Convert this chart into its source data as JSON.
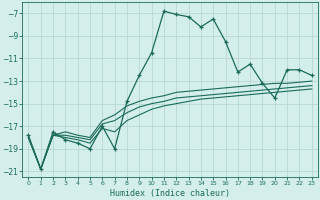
{
  "xlabel": "Humidex (Indice chaleur)",
  "bg_color": "#d4eeeb",
  "grid_color": "#b8d8d4",
  "line_color": "#1a6b5a",
  "xlim": [
    -0.5,
    23.5
  ],
  "ylim": [
    -21.5,
    -6.0
  ],
  "xticks": [
    0,
    1,
    2,
    3,
    4,
    5,
    6,
    7,
    8,
    9,
    10,
    11,
    12,
    13,
    14,
    15,
    16,
    17,
    18,
    19,
    20,
    21,
    22,
    23
  ],
  "yticks": [
    -21,
    -19,
    -17,
    -15,
    -13,
    -11,
    -9,
    -7
  ],
  "main_x": [
    0,
    1,
    2,
    3,
    4,
    5,
    6,
    7,
    8,
    9,
    10,
    11,
    12,
    13,
    14,
    15,
    16,
    17,
    18,
    19,
    20,
    21,
    22,
    23
  ],
  "main_y": [
    -17.8,
    -20.8,
    -17.5,
    -18.2,
    -18.5,
    -19.0,
    -17.0,
    -19.0,
    -14.8,
    -12.5,
    -10.5,
    -6.8,
    -7.1,
    -7.3,
    -8.2,
    -7.5,
    -9.5,
    -12.2,
    -11.5,
    -13.2,
    -14.5,
    -12.0,
    -12.0,
    -12.5
  ],
  "line2_x": [
    0,
    1,
    2,
    3,
    4,
    5,
    6,
    7,
    8,
    9,
    10,
    11,
    12,
    13,
    14,
    15,
    16,
    17,
    18,
    19,
    20,
    21,
    22,
    23
  ],
  "line2_y": [
    -18.0,
    -20.8,
    -17.8,
    -17.5,
    -17.8,
    -18.0,
    -16.5,
    -16.0,
    -15.2,
    -14.8,
    -14.5,
    -14.3,
    -14.0,
    -13.9,
    -13.8,
    -13.7,
    -13.6,
    -13.5,
    -13.4,
    -13.3,
    -13.2,
    -13.2,
    -13.1,
    -13.0
  ],
  "line3_x": [
    0,
    1,
    2,
    3,
    4,
    5,
    6,
    7,
    8,
    9,
    10,
    11,
    12,
    13,
    14,
    15,
    16,
    17,
    18,
    19,
    20,
    21,
    22,
    23
  ],
  "line3_y": [
    -18.0,
    -20.8,
    -17.8,
    -18.0,
    -18.2,
    -18.5,
    -17.2,
    -17.5,
    -16.5,
    -16.0,
    -15.5,
    -15.2,
    -15.0,
    -14.8,
    -14.6,
    -14.5,
    -14.4,
    -14.3,
    -14.2,
    -14.1,
    -14.0,
    -13.9,
    -13.8,
    -13.7
  ],
  "line4_x": [
    0,
    1,
    2,
    3,
    4,
    5,
    6,
    7,
    8,
    9,
    10,
    11,
    12,
    13,
    14,
    15,
    16,
    17,
    18,
    19,
    20,
    21,
    22,
    23
  ],
  "line4_y": [
    -18.0,
    -20.8,
    -17.8,
    -17.8,
    -18.0,
    -18.2,
    -16.8,
    -16.5,
    -15.8,
    -15.3,
    -15.0,
    -14.8,
    -14.5,
    -14.4,
    -14.3,
    -14.2,
    -14.1,
    -14.0,
    -13.9,
    -13.8,
    -13.7,
    -13.6,
    -13.5,
    -13.4
  ]
}
